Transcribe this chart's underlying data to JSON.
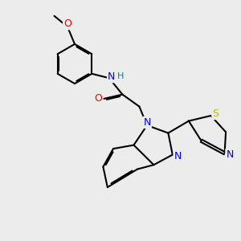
{
  "bg_color": "#ececec",
  "bond_color": "#000000",
  "bond_width": 1.5,
  "atom_colors": {
    "N": "#0000ee",
    "O": "#ee0000",
    "S": "#bbbb00",
    "H": "#008888"
  },
  "font_size": 9,
  "figsize": [
    3.0,
    3.0
  ],
  "dpi": 100
}
